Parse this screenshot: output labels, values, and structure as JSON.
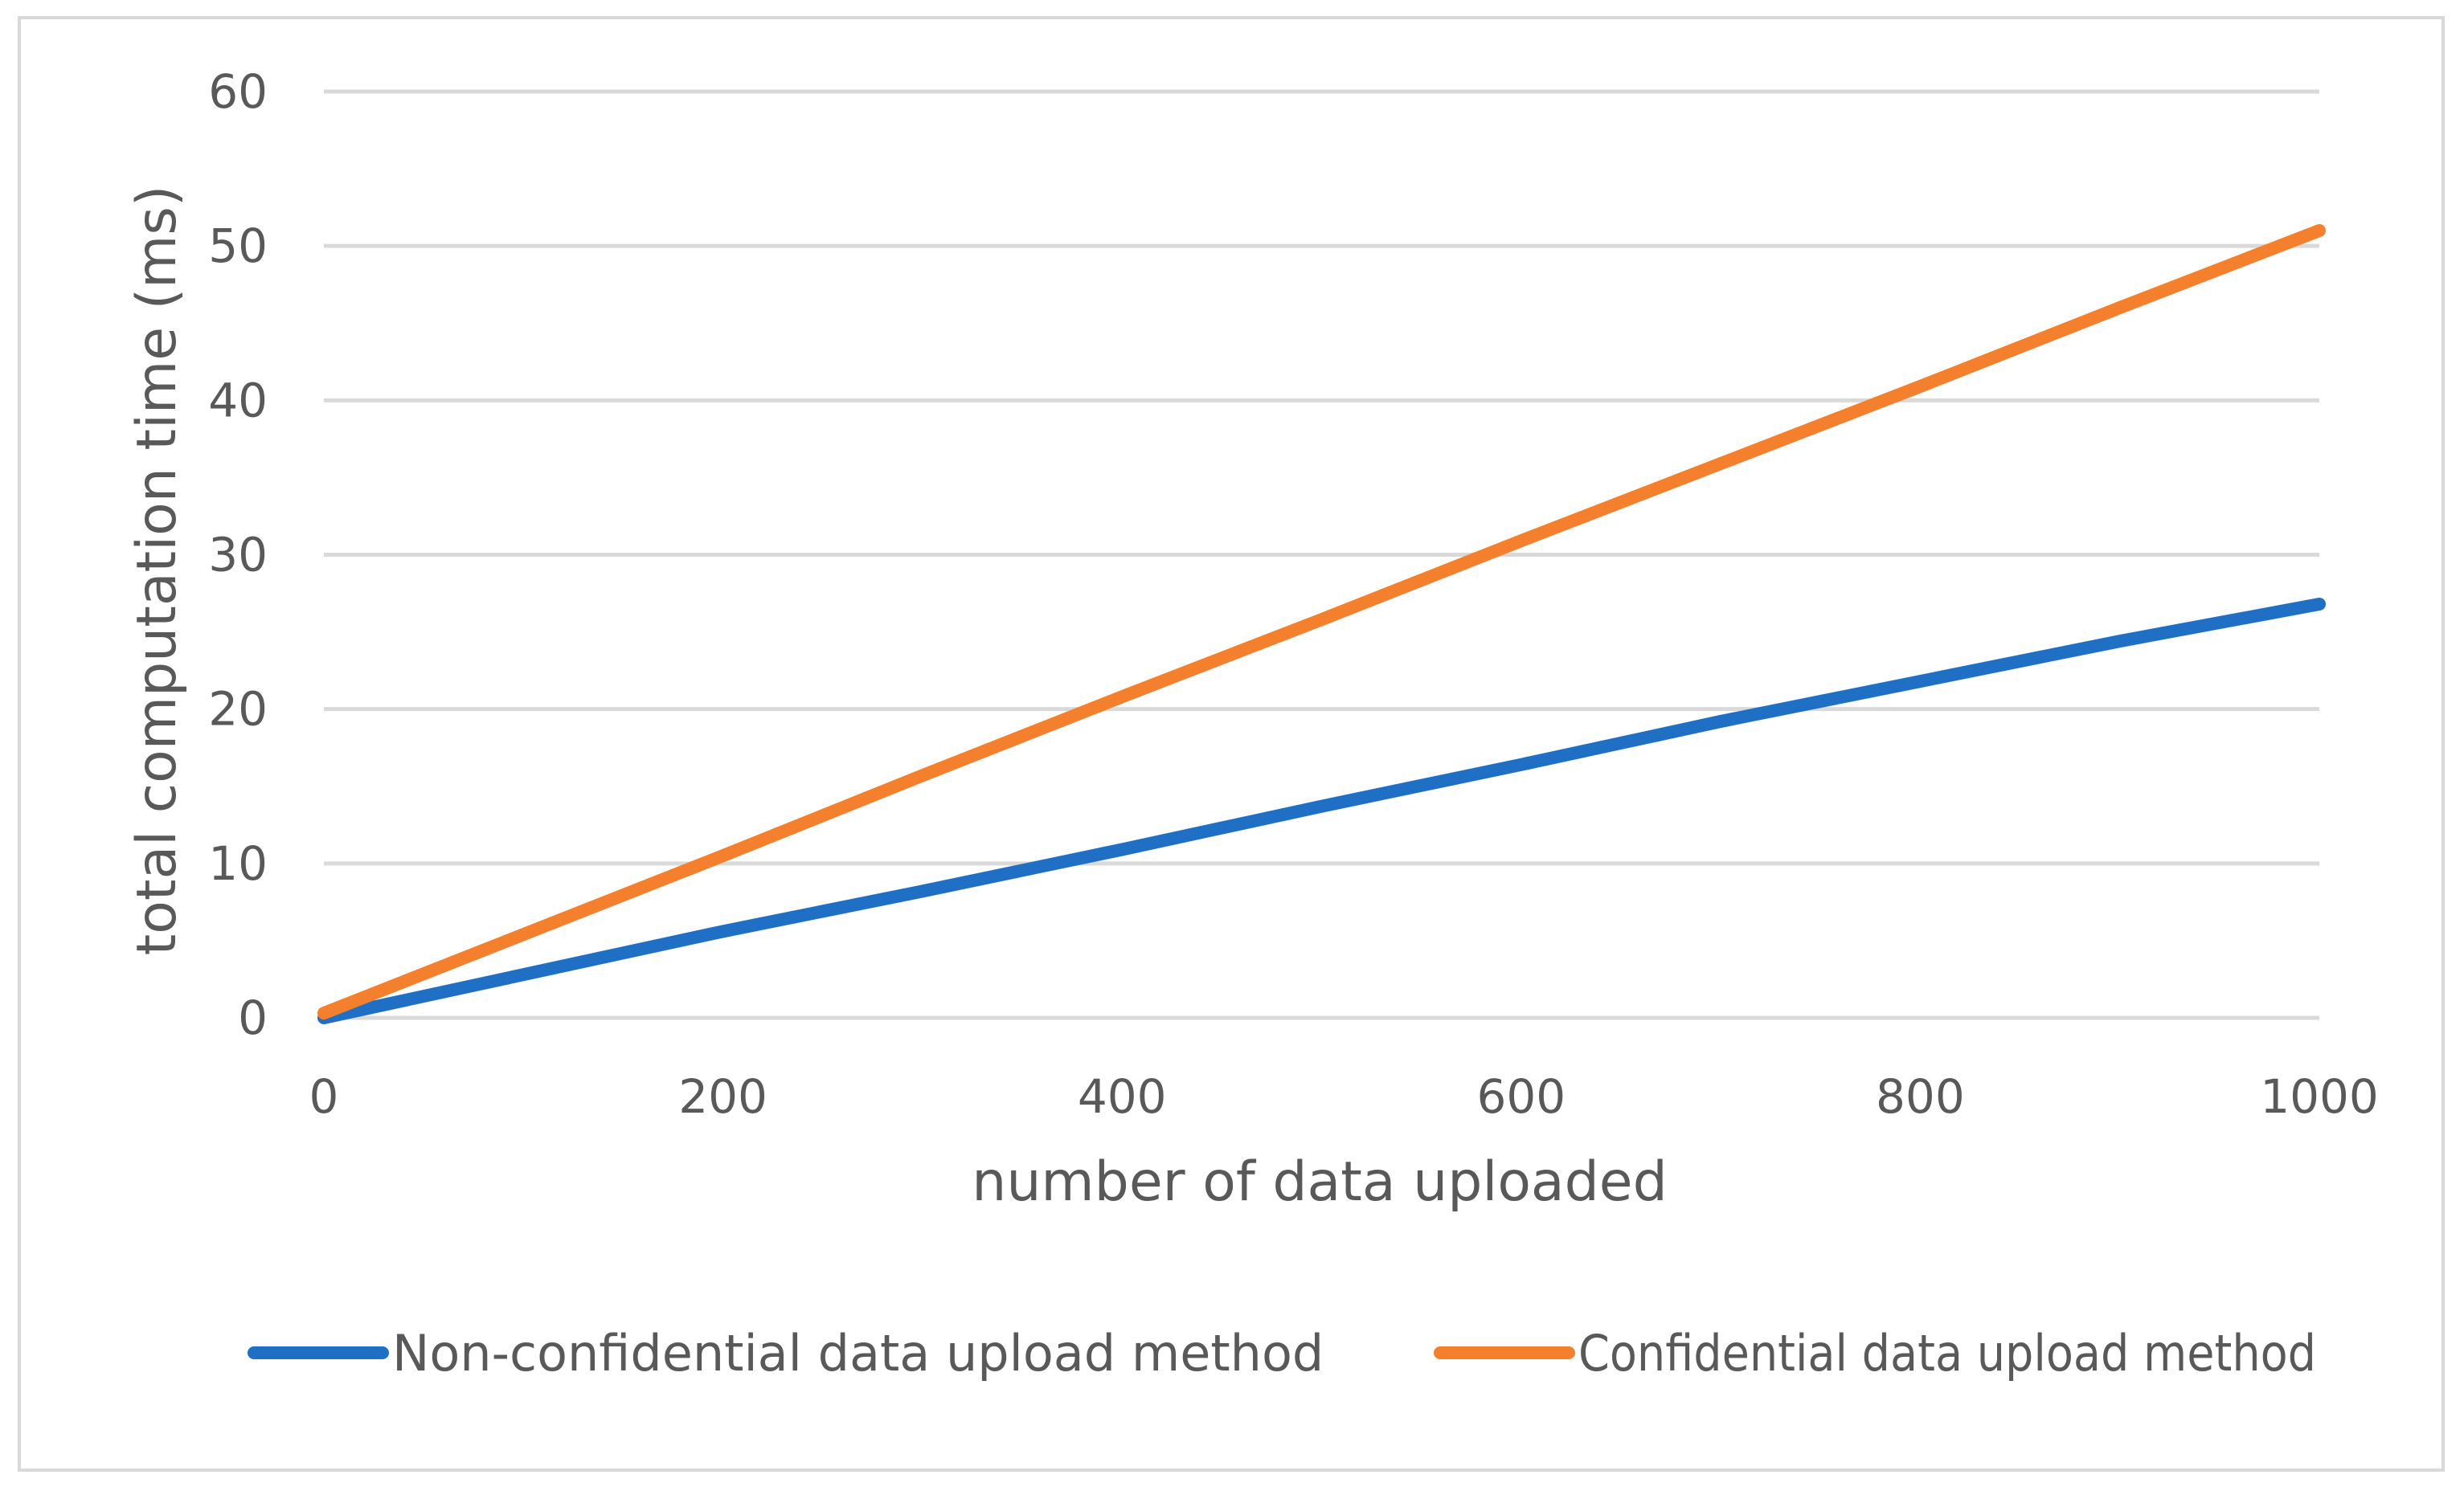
{
  "chart_data": {
    "type": "line",
    "title": "",
    "xlabel": "number of data uploaded",
    "ylabel": "total computation time (ms)",
    "xlim": [
      0,
      1000
    ],
    "ylim": [
      0,
      60
    ],
    "x_ticks": [
      0,
      200,
      400,
      600,
      800,
      1000
    ],
    "y_ticks": [
      0,
      10,
      20,
      30,
      40,
      50,
      60
    ],
    "x_tick_labels": [
      "0",
      "200",
      "400",
      "600",
      "800",
      "1000"
    ],
    "y_tick_labels": [
      "0",
      "10",
      "20",
      "30",
      "40",
      "50",
      "60"
    ],
    "grid": "horizontal",
    "legend_position": "bottom",
    "series": [
      {
        "name": "Non-confidential data upload method",
        "color": "#1f6fc5",
        "points": [
          [
            0,
            0
          ],
          [
            100,
            2.8
          ],
          [
            200,
            5.6
          ],
          [
            300,
            8.2
          ],
          [
            400,
            10.9
          ],
          [
            500,
            13.7
          ],
          [
            600,
            16.4
          ],
          [
            700,
            19.2
          ],
          [
            800,
            21.8
          ],
          [
            900,
            24.4
          ],
          [
            1000,
            26.8
          ]
        ]
      },
      {
        "name": "Confidential data upload method",
        "color": "#f4802e",
        "points": [
          [
            0,
            0.3
          ],
          [
            100,
            5.4
          ],
          [
            200,
            10.5
          ],
          [
            300,
            15.7
          ],
          [
            400,
            20.8
          ],
          [
            500,
            25.8
          ],
          [
            600,
            30.9
          ],
          [
            700,
            35.9
          ],
          [
            800,
            40.9
          ],
          [
            900,
            46.0
          ],
          [
            1000,
            51.0
          ]
        ]
      }
    ]
  }
}
